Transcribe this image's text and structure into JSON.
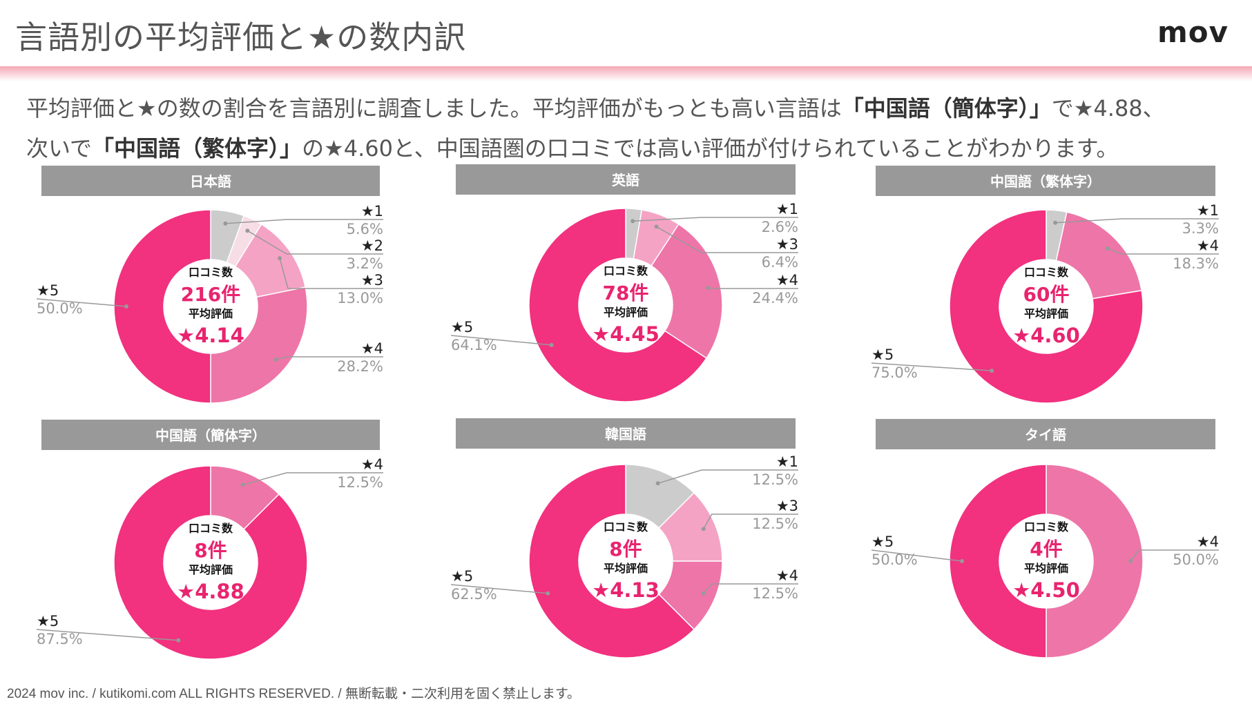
{
  "header": {
    "title": "言語別の平均評価と★の数内訳",
    "logo": "mov"
  },
  "summary": {
    "line1_a": "平均評価と★の数の割合を言語別に調査しました。平均評価がもっとも高い言語は",
    "line1_b": "「中国語（簡体字）」",
    "line1_c": "で★4.88、",
    "line2_a": "次いで",
    "line2_b": "「中国語（繁体字）」",
    "line2_c": "の★4.60と、中国語圏の口コミでは高い評価が付けられていることがわかります。"
  },
  "colors": {
    "star1": "#cccccc",
    "star2": "#f7dde5",
    "star3": "#f5a3c5",
    "star4": "#ee75a8",
    "star5": "#f2317f",
    "title_bar": "#999999",
    "accent_text": "#e8246f"
  },
  "center_labels": {
    "reviews": "口コミ数",
    "average": "平均評価"
  },
  "chart_data": [
    {
      "type": "pie",
      "title": "日本語",
      "review_count": "216件",
      "average": "★4.14",
      "slices": [
        {
          "label": "★1",
          "value": 5.6,
          "text": "5.6%"
        },
        {
          "label": "★2",
          "value": 3.2,
          "text": "3.2%"
        },
        {
          "label": "★3",
          "value": 13.0,
          "text": "13.0%"
        },
        {
          "label": "★4",
          "value": 28.2,
          "text": "28.2%"
        },
        {
          "label": "★5",
          "value": 50.0,
          "text": "50.0%"
        }
      ]
    },
    {
      "type": "pie",
      "title": "英語",
      "review_count": "78件",
      "average": "★4.45",
      "slices": [
        {
          "label": "★1",
          "value": 2.6,
          "text": "2.6%"
        },
        {
          "label": "★3",
          "value": 6.4,
          "text": "6.4%"
        },
        {
          "label": "★4",
          "value": 24.4,
          "text": "24.4%"
        },
        {
          "label": "★5",
          "value": 64.1,
          "text": "64.1%"
        }
      ]
    },
    {
      "type": "pie",
      "title": "中国語（繁体字）",
      "review_count": "60件",
      "average": "★4.60",
      "slices": [
        {
          "label": "★1",
          "value": 3.3,
          "text": "3.3%"
        },
        {
          "label": "★4",
          "value": 18.3,
          "text": "18.3%"
        },
        {
          "label": "★5",
          "value": 75.0,
          "text": "75.0%"
        }
      ]
    },
    {
      "type": "pie",
      "title": "中国語（簡体字）",
      "review_count": "8件",
      "average": "★4.88",
      "slices": [
        {
          "label": "★4",
          "value": 12.5,
          "text": "12.5%"
        },
        {
          "label": "★5",
          "value": 87.5,
          "text": "87.5%"
        }
      ]
    },
    {
      "type": "pie",
      "title": "韓国語",
      "review_count": "8件",
      "average": "★4.13",
      "slices": [
        {
          "label": "★1",
          "value": 12.5,
          "text": "12.5%"
        },
        {
          "label": "★3",
          "value": 12.5,
          "text": "12.5%"
        },
        {
          "label": "★4",
          "value": 12.5,
          "text": "12.5%"
        },
        {
          "label": "★5",
          "value": 62.5,
          "text": "62.5%"
        }
      ]
    },
    {
      "type": "pie",
      "title": "タイ語",
      "review_count": "4件",
      "average": "★4.50",
      "slices": [
        {
          "label": "★4",
          "value": 50.0,
          "text": "50.0%"
        },
        {
          "label": "★5",
          "value": 50.0,
          "text": "50.0%"
        }
      ]
    }
  ],
  "footer": {
    "text": "2024 mov inc. / kutikomi.com ALL RIGHTS RESERVED. / 無断転載・二次利用を固く禁止します。"
  }
}
